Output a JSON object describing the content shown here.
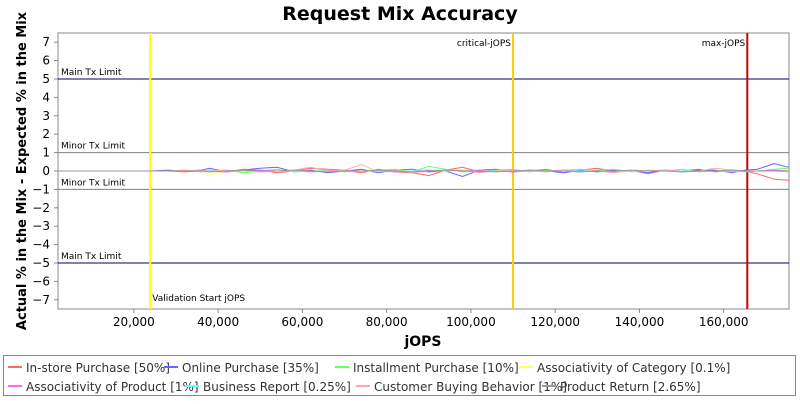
{
  "chart_data": {
    "type": "line",
    "title": "Request Mix Accuracy",
    "xlabel": "jOPS",
    "ylabel": "Actual % in the Mix - Expected % in the Mix",
    "xlim": [
      2000,
      175500
    ],
    "ylim": [
      -7.5,
      7.5
    ],
    "xticks": [
      20000,
      40000,
      60000,
      80000,
      100000,
      120000,
      140000,
      160000
    ],
    "xtick_labels": [
      "20,000",
      "40,000",
      "60,000",
      "80,000",
      "100,000",
      "120,000",
      "140,000",
      "160,000"
    ],
    "yticks": [
      -7,
      -6,
      -5,
      -4,
      -3,
      -2,
      -1,
      0,
      1,
      2,
      3,
      4,
      5,
      6,
      7
    ],
    "ytick_labels": [
      "−7",
      "−6",
      "−5",
      "−4",
      "−3",
      "−2",
      "−1",
      "0",
      "1",
      "2",
      "3",
      "4",
      "5",
      "6",
      "7"
    ],
    "horizontal_markers": [
      {
        "y": 5,
        "label": "Main Tx Limit",
        "color": "#000066"
      },
      {
        "y": 1,
        "label": "Minor Tx Limit",
        "color": "#808080"
      },
      {
        "y": -1,
        "label": "Minor Tx Limit",
        "color": "#808080"
      },
      {
        "y": -5,
        "label": "Main Tx Limit",
        "color": "#000066"
      }
    ],
    "vertical_markers": [
      {
        "x": 23900,
        "label": "Validation Start jOPS",
        "color": "#ffff00"
      },
      {
        "x": 110000,
        "label": "critical-jOPS",
        "color": "#ffcc00"
      },
      {
        "x": 165600,
        "label": "max-jOPS",
        "color": "#cc0000"
      }
    ],
    "grid": false,
    "legend_position": "bottom",
    "x": [
      24000,
      28000,
      32000,
      36000,
      38000,
      42000,
      46000,
      50000,
      54000,
      58000,
      62000,
      66000,
      70000,
      74000,
      78000,
      82000,
      86000,
      90000,
      94000,
      98000,
      102000,
      106000,
      110000,
      114000,
      118000,
      122000,
      126000,
      130000,
      134000,
      138000,
      142000,
      146000,
      150000,
      154000,
      158000,
      162000,
      165000,
      168000,
      172000,
      175500
    ],
    "series": [
      {
        "name": "In-store Purchase [50%]",
        "color": "#ff6666",
        "values": [
          0,
          0,
          -0.05,
          0,
          0.05,
          -0.05,
          0.1,
          0.05,
          -0.1,
          0,
          0.15,
          0.1,
          0.05,
          -0.1,
          0.1,
          -0.05,
          -0.1,
          -0.25,
          0.05,
          0.2,
          -0.05,
          0.05,
          -0.05,
          0,
          0.1,
          -0.1,
          0.05,
          0.15,
          -0.05,
          0.05,
          -0.15,
          0.05,
          0,
          0.1,
          -0.05,
          0.05,
          0,
          -0.15,
          -0.45,
          -0.5
        ]
      },
      {
        "name": "Online Purchase [35%]",
        "color": "#6666ff",
        "values": [
          0,
          0.05,
          0,
          0.05,
          0.15,
          -0.05,
          0.05,
          0.15,
          0.2,
          -0.05,
          0.05,
          -0.1,
          0,
          0.1,
          -0.1,
          0.05,
          0.1,
          -0.05,
          0,
          -0.3,
          0.05,
          0.1,
          -0.05,
          0.05,
          0,
          -0.1,
          0.05,
          -0.05,
          0.05,
          0,
          -0.1,
          0.05,
          -0.05,
          0.05,
          0.05,
          -0.1,
          0.05,
          0.1,
          0.4,
          0.2
        ]
      },
      {
        "name": "Installment Purchase [10%]",
        "color": "#66ff66",
        "values": [
          0,
          0,
          0.05,
          -0.05,
          0,
          0.05,
          -0.1,
          0,
          0.1,
          -0.05,
          0,
          0.05,
          -0.05,
          0,
          0.05,
          0.1,
          -0.05,
          0.25,
          0.1,
          -0.05,
          0,
          0.05,
          0.1,
          -0.05,
          0.05,
          0,
          -0.05,
          0.05,
          0.1,
          -0.05,
          0.05,
          0,
          0.1,
          -0.05,
          0,
          0.05,
          -0.05,
          0,
          0.1,
          0.15
        ]
      },
      {
        "name": "Associativity of Category [0.1%]",
        "color": "#ffff66",
        "values": [
          0,
          0,
          0,
          0,
          -0.2,
          0,
          0,
          0,
          0,
          0,
          0,
          0,
          0,
          0,
          0,
          0,
          0,
          0,
          0,
          0,
          0,
          0,
          0,
          0,
          0,
          0,
          0,
          0,
          0,
          0,
          0,
          0,
          0,
          0,
          0,
          0,
          0,
          0,
          0,
          0
        ]
      },
      {
        "name": "Associativity of Product [1%]",
        "color": "#ff66ff",
        "values": [
          0,
          0,
          0,
          0.05,
          0,
          -0.05,
          0,
          0.05,
          0,
          0,
          -0.05,
          0,
          0.05,
          0,
          0,
          -0.05,
          0,
          0.05,
          0,
          0,
          0.05,
          0,
          -0.05,
          0,
          0,
          0.05,
          0,
          0,
          -0.05,
          0,
          0,
          0.05,
          0,
          0,
          0,
          -0.05,
          0,
          0,
          0.05,
          0
        ]
      },
      {
        "name": "Business Report [0.25%]",
        "color": "#66ffff",
        "values": [
          0,
          0,
          0,
          0,
          0.05,
          0,
          0,
          -0.05,
          0,
          0,
          0,
          0,
          0,
          0,
          0,
          0,
          0,
          0,
          0,
          0,
          0,
          0,
          0,
          0,
          0,
          0,
          0,
          0,
          0,
          0,
          0,
          0,
          0,
          0,
          0,
          0,
          0,
          0,
          0,
          0
        ]
      },
      {
        "name": "Customer Buying Behavior [1%]",
        "color": "#ffaaaa",
        "values": [
          0,
          0,
          0.05,
          0,
          0,
          0.05,
          0,
          -0.05,
          0,
          0.05,
          0.2,
          0,
          0.05,
          0.35,
          -0.05,
          0.05,
          -0.1,
          0,
          0.05,
          0.05,
          -0.1,
          0,
          0.05,
          0,
          -0.05,
          0.05,
          0.1,
          0,
          -0.1,
          0.05,
          0,
          0.05,
          -0.05,
          0,
          0.15,
          0.05,
          0,
          0,
          0,
          -0.05
        ]
      },
      {
        "name": "Product Return [2.65%]",
        "color": "#999999",
        "values": [
          0,
          0,
          0,
          0,
          -0.05,
          0,
          0.05,
          0,
          0,
          0.05,
          0,
          -0.05,
          0,
          0,
          0.05,
          0,
          -0.05,
          0,
          0.05,
          0,
          0,
          -0.05,
          0,
          0.05,
          0,
          0,
          -0.05,
          0,
          0,
          0.05,
          0,
          0,
          -0.05,
          0,
          0,
          0.05,
          0,
          0,
          0,
          0
        ]
      }
    ]
  }
}
